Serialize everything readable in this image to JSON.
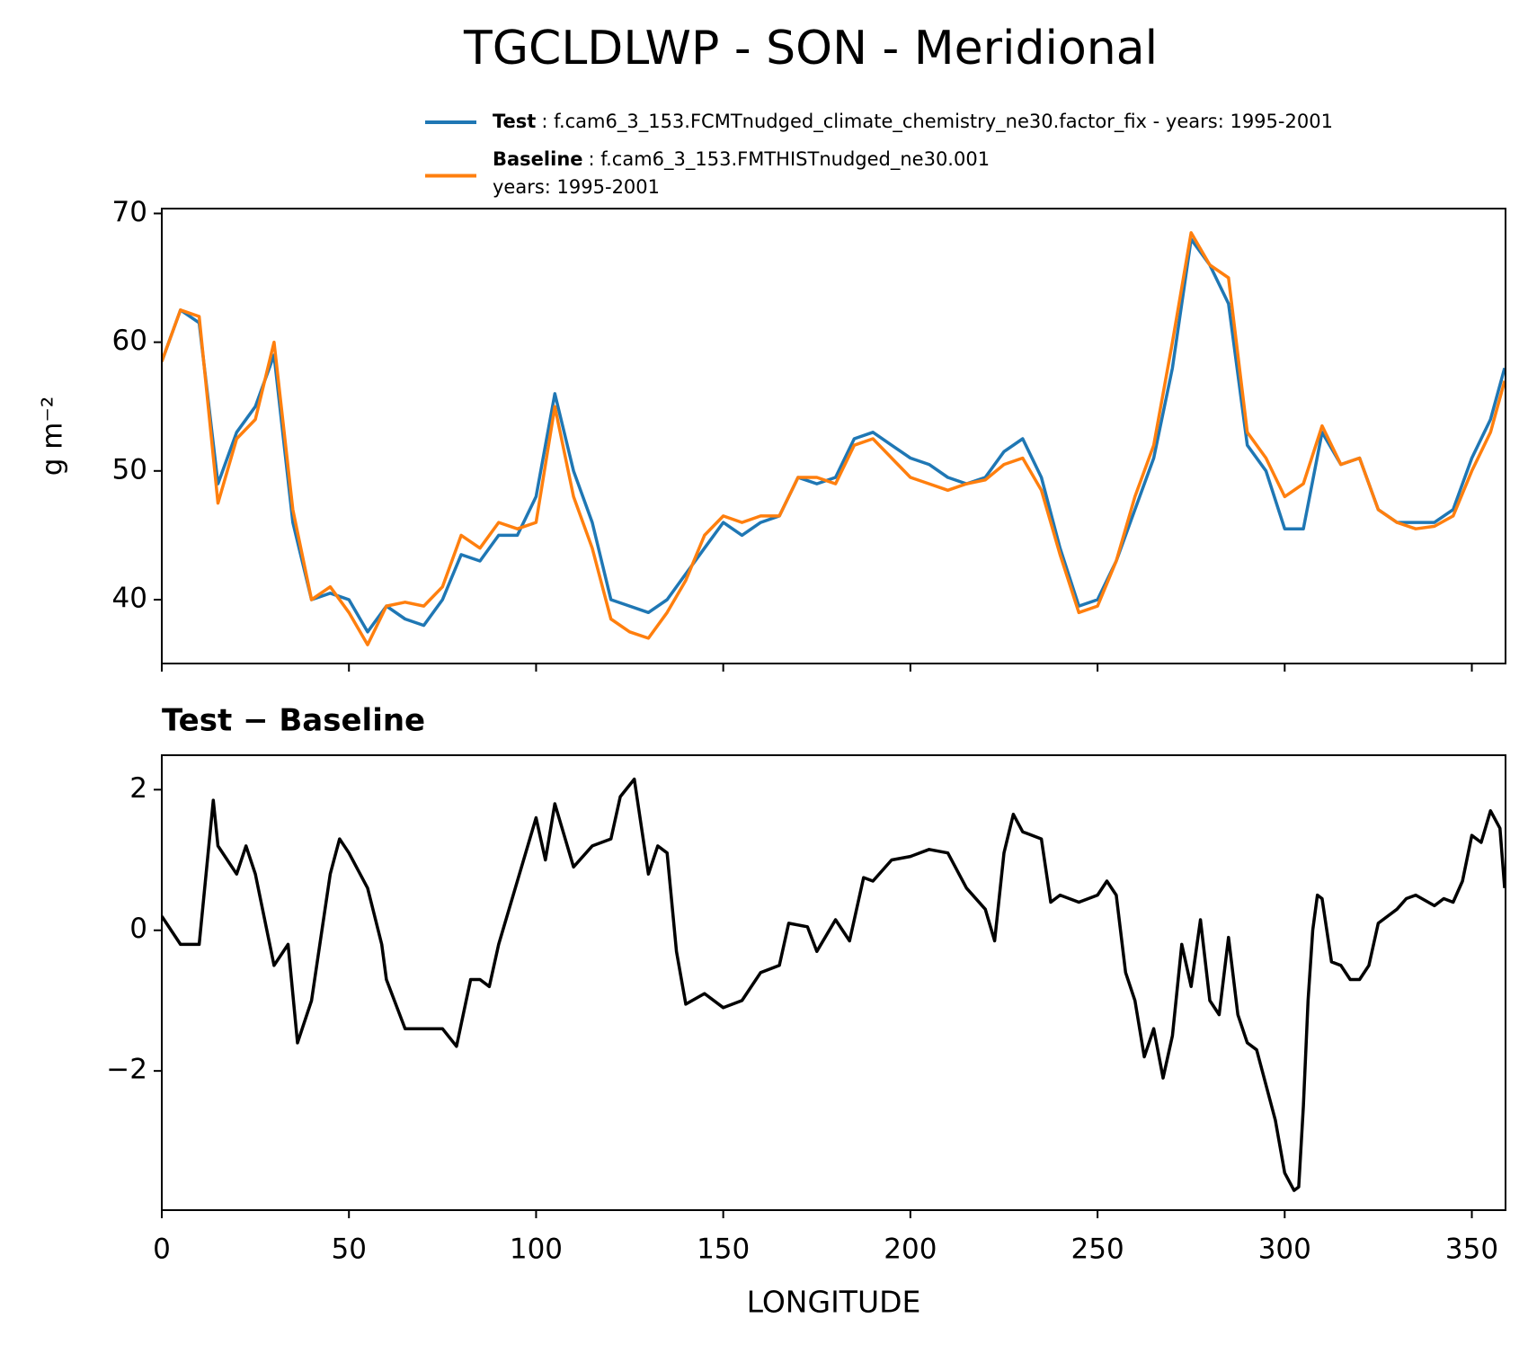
{
  "chart_data": [
    {
      "type": "line",
      "title": "TGCLDLWP - SON - Meridional",
      "ylabel": "g m⁻²",
      "x": [
        0,
        5,
        10,
        15,
        20,
        25,
        30,
        35,
        40,
        45,
        50,
        55,
        60,
        65,
        70,
        75,
        80,
        85,
        90,
        95,
        100,
        105,
        110,
        115,
        120,
        125,
        130,
        135,
        140,
        145,
        150,
        155,
        160,
        165,
        170,
        175,
        180,
        185,
        190,
        195,
        200,
        205,
        210,
        215,
        220,
        225,
        230,
        235,
        240,
        245,
        250,
        255,
        260,
        265,
        270,
        275,
        280,
        285,
        290,
        295,
        300,
        305,
        310,
        315,
        320,
        325,
        330,
        335,
        340,
        345,
        350,
        355,
        358.75
      ],
      "series": [
        {
          "name": "Test",
          "description": [
            ": f.cam6_3_153.FCMTnudged_climate_chemistry_ne30.factor_fix - years: 1995-2001"
          ],
          "color": "#1f77b4",
          "values": [
            58.5,
            62.5,
            61.5,
            49,
            53,
            55,
            59,
            46,
            40,
            40.5,
            40,
            37.5,
            39.5,
            38.5,
            38,
            40,
            43.5,
            43,
            45,
            45,
            48,
            56,
            50,
            46,
            40,
            39.5,
            39,
            40,
            42,
            44,
            46,
            45,
            46,
            46.5,
            49.5,
            49,
            49.5,
            52.5,
            53,
            52,
            51,
            50.5,
            49.5,
            49,
            49.5,
            51.5,
            52.5,
            49.5,
            44,
            39.5,
            40,
            43,
            47,
            51,
            58,
            68,
            66,
            63,
            52,
            50,
            45.5,
            45.5,
            53,
            50.5,
            51,
            47,
            46,
            46,
            46,
            47,
            51,
            54,
            58
          ]
        },
        {
          "name": "Baseline",
          "description": [
            ": f.cam6_3_153.FMTHISTnudged_ne30.001",
            "years: 1995-2001"
          ],
          "color": "#ff7f0e",
          "values": [
            58.5,
            62.5,
            62,
            47.5,
            52.5,
            54,
            60,
            47,
            40,
            41,
            39,
            36.5,
            39.5,
            39.8,
            39.5,
            41,
            45,
            44,
            46,
            45.5,
            46,
            55,
            48,
            44,
            38.5,
            37.5,
            37,
            39,
            41.5,
            45,
            46.5,
            46,
            46.5,
            46.5,
            49.5,
            49.5,
            49,
            52,
            52.5,
            51,
            49.5,
            49,
            48.5,
            49,
            49.3,
            50.5,
            51,
            48.5,
            43.5,
            39,
            39.5,
            43,
            48,
            52,
            60,
            68.5,
            66,
            65,
            53,
            51,
            48,
            49,
            53.5,
            50.5,
            51,
            47,
            46,
            45.5,
            45.7,
            46.5,
            50,
            53,
            57
          ]
        }
      ],
      "xlim": [
        0,
        359
      ],
      "xticks": [
        0,
        50,
        100,
        150,
        200,
        250,
        300,
        350
      ],
      "ylim": [
        35.04,
        70.38
      ],
      "yticks": [
        40,
        50,
        60,
        70
      ]
    },
    {
      "type": "line",
      "title": "Test − Baseline",
      "xlabel": "LONGITUDE",
      "color": "#000000",
      "x": [
        0,
        5,
        10,
        13.75,
        15,
        20,
        22.5,
        25,
        30,
        33.75,
        36.25,
        40,
        45,
        47.5,
        50,
        55,
        58.75,
        60,
        65,
        70,
        75,
        78.75,
        82.5,
        85,
        87.5,
        90,
        95,
        100,
        102.5,
        105,
        110,
        115,
        120,
        122.5,
        126.25,
        130,
        132.5,
        135,
        137.5,
        140,
        145,
        150,
        155,
        160,
        165,
        167.5,
        172.5,
        175,
        180,
        183.75,
        187.5,
        190,
        195,
        200,
        205,
        210,
        215,
        220,
        222.5,
        225,
        227.5,
        230,
        235,
        237.5,
        240,
        245,
        250,
        252.5,
        255,
        257.5,
        260,
        262.5,
        265,
        267.5,
        270,
        272.5,
        275,
        277.5,
        280,
        282.5,
        285,
        287.5,
        290,
        292.5,
        295,
        297.5,
        300,
        302.5,
        303.75,
        305,
        306.25,
        307.5,
        308.75,
        310,
        312.5,
        315,
        317.5,
        320,
        322.5,
        325,
        330,
        332.5,
        335,
        340,
        342.5,
        345,
        347.5,
        350,
        352.5,
        355,
        357.5,
        358.75
      ],
      "values": [
        0.2,
        -0.2,
        -0.2,
        1.85,
        1.2,
        0.8,
        1.2,
        0.8,
        -0.5,
        -0.2,
        -1.6,
        -1,
        0.8,
        1.3,
        1.1,
        0.6,
        -0.2,
        -0.7,
        -1.4,
        -1.4,
        -1.4,
        -1.65,
        -0.7,
        -0.7,
        -0.8,
        -0.2,
        0.7,
        1.6,
        1,
        1.8,
        0.9,
        1.2,
        1.3,
        1.9,
        2.15,
        0.8,
        1.2,
        1.1,
        -0.3,
        -1.05,
        -0.9,
        -1.1,
        -1,
        -0.6,
        -0.5,
        0.1,
        0.05,
        -0.3,
        0.15,
        -0.15,
        0.75,
        0.7,
        1,
        1.05,
        1.15,
        1.1,
        0.6,
        0.3,
        -0.15,
        1.1,
        1.65,
        1.4,
        1.3,
        0.4,
        0.5,
        0.4,
        0.5,
        0.7,
        0.5,
        -0.6,
        -1,
        -1.8,
        -1.4,
        -2.1,
        -1.5,
        -0.2,
        -0.8,
        0.15,
        -1,
        -1.2,
        -0.1,
        -1.2,
        -1.6,
        -1.7,
        -2.2,
        -2.7,
        -3.45,
        -3.7,
        -3.65,
        -2.5,
        -1,
        0,
        0.5,
        0.45,
        -0.45,
        -0.5,
        -0.7,
        -0.7,
        -0.5,
        0.1,
        0.3,
        0.45,
        0.5,
        0.35,
        0.45,
        0.4,
        0.7,
        1.35,
        1.25,
        1.7,
        1.45,
        0.6
      ],
      "xlim": [
        0,
        359
      ],
      "xticks": [
        0,
        50,
        100,
        150,
        200,
        250,
        300,
        350
      ],
      "ylim": [
        -3.98,
        2.49
      ],
      "yticks": [
        {
          "value": -2,
          "label": "−2"
        },
        0,
        2
      ]
    }
  ]
}
